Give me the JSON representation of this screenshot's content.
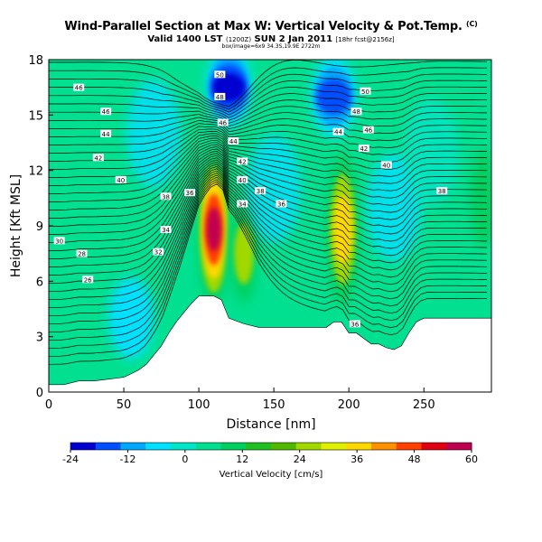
{
  "header": {
    "title": "Wind-Parallel Section at Max W: Vertical Velocity & Pot.Temp.",
    "copyright": "(C)",
    "valid_main": "Valid 1400 LST",
    "valid_utc": "(1200Z)",
    "valid_day": "SUN 2 Jan 2011",
    "forecast_info": "[18hr fcst@2156z]",
    "location_line": "box/image=6x9 34.3S,19.9E 2722m"
  },
  "chart_data": {
    "type": "heatmap",
    "xlabel": "Distance [nm]",
    "ylabel": "Height [Kft MSL]",
    "xlim": [
      0,
      295
    ],
    "ylim": [
      0,
      18
    ],
    "x_ticks": [
      0,
      50,
      100,
      150,
      200,
      250
    ],
    "y_ticks": [
      0,
      3,
      6,
      9,
      12,
      15,
      18
    ],
    "colorbar": {
      "label": "Vertical Velocity [cm/s]",
      "min": -24,
      "max": 60,
      "ticks": [
        -24,
        -12,
        0,
        12,
        24,
        36,
        48,
        60
      ],
      "colors": [
        "#0000d0",
        "#0050ff",
        "#00a8ff",
        "#00e0ff",
        "#00e6c8",
        "#00e090",
        "#00d060",
        "#20c020",
        "#50b800",
        "#a0d800",
        "#e0f000",
        "#ffd800",
        "#ff9000",
        "#ff4000",
        "#e00010",
        "#c00050"
      ]
    },
    "terrain": [
      [
        0,
        0.4
      ],
      [
        10,
        0.4
      ],
      [
        20,
        0.6
      ],
      [
        30,
        0.6
      ],
      [
        40,
        0.7
      ],
      [
        50,
        0.8
      ],
      [
        55,
        1.0
      ],
      [
        60,
        1.2
      ],
      [
        65,
        1.5
      ],
      [
        70,
        2.0
      ],
      [
        75,
        2.5
      ],
      [
        80,
        3.2
      ],
      [
        85,
        3.8
      ],
      [
        90,
        4.3
      ],
      [
        95,
        4.8
      ],
      [
        100,
        5.2
      ],
      [
        110,
        5.2
      ],
      [
        115,
        5.0
      ],
      [
        120,
        4.0
      ],
      [
        130,
        3.7
      ],
      [
        140,
        3.5
      ],
      [
        160,
        3.5
      ],
      [
        175,
        3.5
      ],
      [
        185,
        3.5
      ],
      [
        190,
        3.8
      ],
      [
        195,
        3.8
      ],
      [
        200,
        3.2
      ],
      [
        205,
        3.2
      ],
      [
        210,
        2.9
      ],
      [
        215,
        2.6
      ],
      [
        220,
        2.6
      ],
      [
        225,
        2.4
      ],
      [
        230,
        2.3
      ],
      [
        235,
        2.5
      ],
      [
        240,
        3.2
      ],
      [
        245,
        3.8
      ],
      [
        250,
        4.0
      ],
      [
        270,
        4.0
      ],
      [
        295,
        4.0
      ]
    ],
    "updraft_cores": [
      {
        "x": 110,
        "y": 8.8,
        "w": 60
      },
      {
        "x": 196,
        "y": 8.8,
        "w": 36
      },
      {
        "x": 130,
        "y": 7.5,
        "w": 24
      },
      {
        "x": 290,
        "y": 10.5,
        "w": 18
      }
    ],
    "downdraft_cores": [
      {
        "x": 120,
        "y": 16.5,
        "w": -24
      },
      {
        "x": 190,
        "y": 16.0,
        "w": -18
      },
      {
        "x": 55,
        "y": 4.0,
        "w": -6
      }
    ],
    "contour_labels": [
      {
        "text": "46",
        "x": 20,
        "y": 16.5
      },
      {
        "text": "46",
        "x": 38,
        "y": 15.2
      },
      {
        "text": "44",
        "x": 38,
        "y": 14.0
      },
      {
        "text": "42",
        "x": 33,
        "y": 12.7
      },
      {
        "text": "40",
        "x": 48,
        "y": 11.5
      },
      {
        "text": "38",
        "x": 78,
        "y": 10.6
      },
      {
        "text": "36",
        "x": 94,
        "y": 10.8
      },
      {
        "text": "34",
        "x": 78,
        "y": 8.8
      },
      {
        "text": "32",
        "x": 73,
        "y": 7.6
      },
      {
        "text": "30",
        "x": 7,
        "y": 8.2
      },
      {
        "text": "28",
        "x": 22,
        "y": 7.5
      },
      {
        "text": "26",
        "x": 26,
        "y": 6.1
      },
      {
        "text": "50",
        "x": 114,
        "y": 17.2
      },
      {
        "text": "48",
        "x": 114,
        "y": 16.0
      },
      {
        "text": "46",
        "x": 116,
        "y": 14.6
      },
      {
        "text": "44",
        "x": 123,
        "y": 13.6
      },
      {
        "text": "42",
        "x": 129,
        "y": 12.5
      },
      {
        "text": "40",
        "x": 129,
        "y": 11.5
      },
      {
        "text": "38",
        "x": 141,
        "y": 10.9
      },
      {
        "text": "34",
        "x": 129,
        "y": 10.2
      },
      {
        "text": "36",
        "x": 155,
        "y": 10.2
      },
      {
        "text": "50",
        "x": 211,
        "y": 16.3
      },
      {
        "text": "48",
        "x": 205,
        "y": 15.2
      },
      {
        "text": "46",
        "x": 213,
        "y": 14.2
      },
      {
        "text": "44",
        "x": 193,
        "y": 14.1
      },
      {
        "text": "42",
        "x": 210,
        "y": 13.2
      },
      {
        "text": "40",
        "x": 225,
        "y": 12.3
      },
      {
        "text": "38",
        "x": 262,
        "y": 10.9
      },
      {
        "text": "36",
        "x": 204,
        "y": 3.7
      }
    ]
  }
}
